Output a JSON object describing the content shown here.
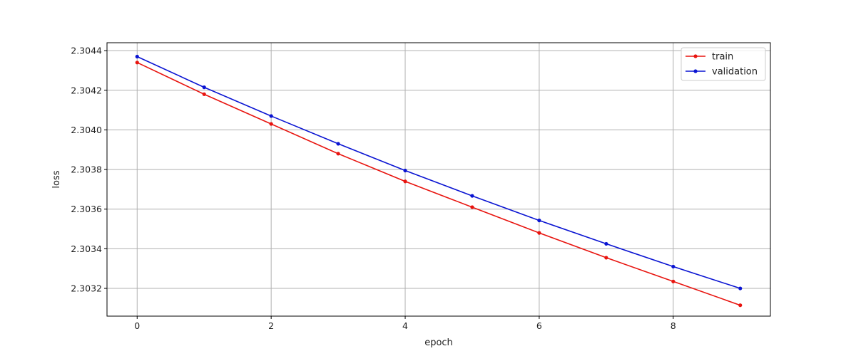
{
  "chart_data": {
    "type": "line",
    "xlabel": "epoch",
    "ylabel": "loss",
    "x": [
      0,
      1,
      2,
      3,
      4,
      5,
      6,
      7,
      8,
      9
    ],
    "xlim": [
      -0.45,
      9.45
    ],
    "ylim": [
      2.30306,
      2.30444
    ],
    "xticks": [
      0,
      2,
      4,
      6,
      8
    ],
    "yticks": [
      2.3032,
      2.3034,
      2.3036,
      2.3038,
      2.304,
      2.3042,
      2.3044
    ],
    "xtick_labels": [
      "0",
      "2",
      "4",
      "6",
      "8"
    ],
    "ytick_labels": [
      "2.3032",
      "2.3034",
      "2.3036",
      "2.3038",
      "2.3040",
      "2.3042",
      "2.3044"
    ],
    "grid": true,
    "legend_position": "top-right",
    "series": [
      {
        "name": "train",
        "color": "#e8140f",
        "values": [
          2.30434,
          2.30418,
          2.30403,
          2.30388,
          2.30374,
          2.30361,
          2.30348,
          2.303355,
          2.303235,
          2.303115
        ]
      },
      {
        "name": "validation",
        "color": "#0a14d2",
        "values": [
          2.30437,
          2.304215,
          2.30407,
          2.30393,
          2.303795,
          2.303667,
          2.303543,
          2.303425,
          2.30331,
          2.3032
        ]
      }
    ]
  }
}
